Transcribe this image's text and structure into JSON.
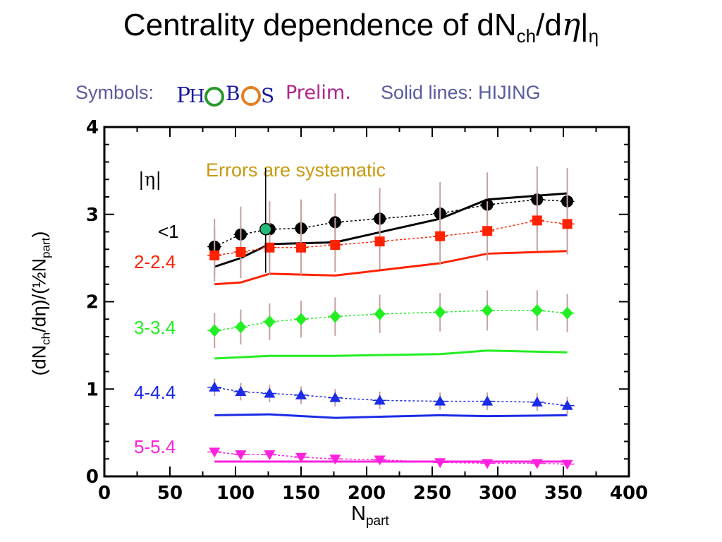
{
  "title": {
    "main": "Centrality dependence of dN",
    "sub": "ch",
    "mid": "/d",
    "eta_italic": "η",
    "tail": "|",
    "tail_sub": "η"
  },
  "header": {
    "symbols_label": "Symbols:",
    "logo_text": "PHOBOS",
    "prelim": "Prelim.",
    "lines_label": "Solid lines:  HIJING"
  },
  "axes": {
    "ylabel_main": "(dN",
    "ylabel_sub": "ch",
    "ylabel_mid": "/dη)/(½N",
    "ylabel_sub2": "part",
    "ylabel_end": ")",
    "xlabel_main": "N",
    "xlabel_sub": "part"
  },
  "chart_data": {
    "type": "scatter",
    "x_ticks": [
      0,
      50,
      100,
      150,
      200,
      250,
      300,
      350,
      400
    ],
    "y_ticks": [
      0,
      1,
      2,
      3,
      4
    ],
    "xlim": [
      0,
      400
    ],
    "ylim": [
      0,
      4
    ],
    "annotations": {
      "errors_note": "Errors are systematic",
      "eta_header": "|η|"
    },
    "series": [
      {
        "name": "<1",
        "color": "#000000",
        "marker": "circle",
        "x": [
          84,
          104,
          126,
          150,
          176,
          210,
          256,
          292,
          330,
          353
        ],
        "y": [
          2.63,
          2.77,
          2.83,
          2.84,
          2.91,
          2.95,
          3.01,
          3.11,
          3.17,
          3.15
        ],
        "err": [
          0.32,
          0.32,
          0.32,
          0.33,
          0.33,
          0.35,
          0.36,
          0.37,
          0.38,
          0.38
        ],
        "hijing_x": [
          84,
          104,
          126,
          176,
          256,
          292,
          353
        ],
        "hijing_y": [
          2.4,
          2.5,
          2.66,
          2.68,
          2.95,
          3.17,
          3.24
        ]
      },
      {
        "name": "2-2.4",
        "color": "#ff2200",
        "marker": "square",
        "x": [
          84,
          104,
          126,
          150,
          176,
          210,
          256,
          292,
          330,
          353
        ],
        "y": [
          2.53,
          2.57,
          2.62,
          2.62,
          2.65,
          2.69,
          2.75,
          2.81,
          2.93,
          2.89
        ],
        "err": [
          0.3,
          0.3,
          0.31,
          0.31,
          0.31,
          0.32,
          0.33,
          0.34,
          0.35,
          0.35
        ],
        "hijing_x": [
          84,
          104,
          126,
          176,
          256,
          292,
          353
        ],
        "hijing_y": [
          2.2,
          2.22,
          2.32,
          2.3,
          2.44,
          2.55,
          2.58
        ]
      },
      {
        "name": "3-3.4",
        "color": "#22ee22",
        "marker": "diamond",
        "x": [
          84,
          104,
          126,
          150,
          176,
          210,
          256,
          292,
          330,
          353
        ],
        "y": [
          1.67,
          1.71,
          1.77,
          1.8,
          1.83,
          1.86,
          1.88,
          1.9,
          1.9,
          1.87
        ],
        "err": [
          0.2,
          0.2,
          0.21,
          0.21,
          0.22,
          0.22,
          0.22,
          0.23,
          0.23,
          0.22
        ],
        "hijing_x": [
          84,
          126,
          176,
          256,
          292,
          353
        ],
        "hijing_y": [
          1.35,
          1.38,
          1.38,
          1.4,
          1.44,
          1.42
        ]
      },
      {
        "name": "4-4.4",
        "color": "#1b2be6",
        "marker": "triangle-up",
        "x": [
          84,
          104,
          126,
          150,
          176,
          210,
          256,
          292,
          330,
          353
        ],
        "y": [
          1.02,
          0.97,
          0.95,
          0.93,
          0.9,
          0.87,
          0.86,
          0.86,
          0.85,
          0.81
        ],
        "err": [
          0.1,
          0.1,
          0.1,
          0.1,
          0.1,
          0.1,
          0.1,
          0.1,
          0.1,
          0.1
        ],
        "hijing_x": [
          84,
          126,
          176,
          256,
          292,
          353
        ],
        "hijing_y": [
          0.7,
          0.71,
          0.67,
          0.7,
          0.69,
          0.7
        ]
      },
      {
        "name": "5-5.4",
        "color": "#ff22dd",
        "marker": "triangle-down",
        "x": [
          84,
          104,
          126,
          150,
          176,
          210,
          256,
          292,
          330,
          353
        ],
        "y": [
          0.28,
          0.25,
          0.25,
          0.22,
          0.2,
          0.19,
          0.16,
          0.15,
          0.15,
          0.14
        ],
        "err": [
          0.04,
          0.04,
          0.04,
          0.04,
          0.04,
          0.04,
          0.04,
          0.04,
          0.04,
          0.04
        ],
        "hijing_x": [
          84,
          176,
          256,
          353
        ],
        "hijing_y": [
          0.17,
          0.17,
          0.17,
          0.17
        ]
      }
    ],
    "special_point": {
      "x": 123,
      "y": 2.83,
      "err_low": 0.5,
      "err_high": 0.7,
      "color": "#22bb77"
    },
    "errorbar_color": "#c8a0a0",
    "grid": false
  }
}
